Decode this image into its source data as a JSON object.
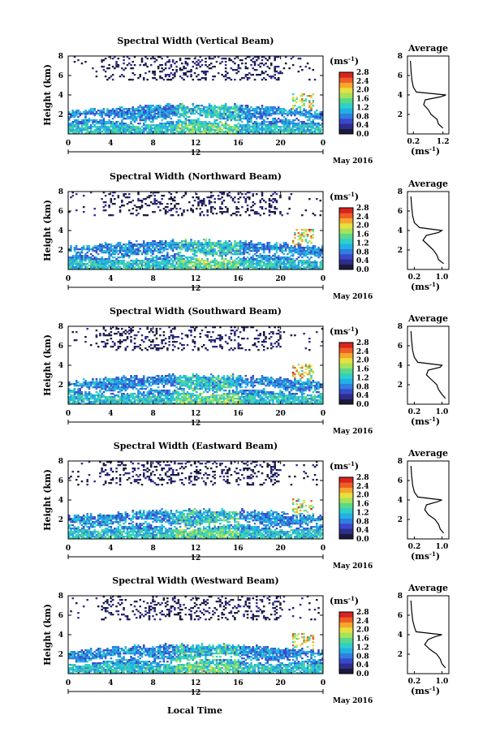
{
  "figure": {
    "xlabel": "Local Time",
    "colorbar_unit": "(ms",
    "colorbar_unit_exp": "-1",
    "colorbar_unit_close": ")",
    "date_label": "May 2016",
    "avg_title": "Average",
    "avg_xlabel_prefix": "(ms",
    "avg_xlabel_exp": "-1",
    "avg_xlabel_suffix": ")",
    "ylabel": "Height (km)",
    "day_marker": "12"
  },
  "palette": [
    "#1a1a3c",
    "#2d2d8c",
    "#3a49c9",
    "#2f7fe0",
    "#22b0e6",
    "#2fd0c8",
    "#5ad88a",
    "#a4e35a",
    "#e8e040",
    "#f6a62c",
    "#ef5c26",
    "#d8231f"
  ],
  "chart_data": [
    {
      "type": "heatmap",
      "title": "Spectral Width (Vertical Beam)",
      "xlabel": "Local Time",
      "ylabel": "Height (km)",
      "xlim": [
        0,
        24
      ],
      "ylim": [
        0,
        8
      ],
      "x_ticks": [
        "0",
        "4",
        "8",
        "12",
        "16",
        "20",
        "0"
      ],
      "y_ticks": [
        "2",
        "4",
        "6",
        "8"
      ],
      "colorbar": {
        "ticks": [
          "0.0",
          "0.4",
          "0.8",
          "1.2",
          "1.6",
          "2.0",
          "2.4",
          "2.8"
        ],
        "range": [
          0,
          2.8
        ]
      },
      "average_profile": {
        "x_ticks": [
          "0.2",
          "1.2"
        ],
        "xlim": [
          0,
          1.4
        ],
        "y_ticks": [
          "2",
          "4",
          "6",
          "8"
        ],
        "height_km": [
          0.6,
          1.0,
          1.5,
          2.0,
          2.5,
          3.0,
          3.5,
          3.8,
          4.0,
          4.3,
          4.8,
          5.5,
          6.5,
          7.5
        ],
        "width_ms": [
          1.2,
          1.05,
          1.0,
          0.8,
          0.7,
          0.55,
          0.6,
          1.1,
          1.3,
          0.3,
          0.2,
          0.15,
          0.12,
          0.1
        ]
      }
    },
    {
      "type": "heatmap",
      "title": "Spectral Width (Northward Beam)",
      "xlabel": "Local Time",
      "ylabel": "Height (km)",
      "xlim": [
        0,
        24
      ],
      "ylim": [
        0,
        8
      ],
      "x_ticks": [
        "0",
        "4",
        "8",
        "12",
        "16",
        "20",
        "0"
      ],
      "y_ticks": [
        "2",
        "4",
        "6",
        "8"
      ],
      "colorbar": {
        "ticks": [
          "0.0",
          "0.4",
          "0.8",
          "1.2",
          "1.6",
          "2.0",
          "2.4",
          "2.8"
        ],
        "range": [
          0,
          2.8
        ]
      },
      "average_profile": {
        "x_ticks": [
          "0.2",
          "1.0"
        ],
        "xlim": [
          0,
          1.2
        ],
        "y_ticks": [
          "2",
          "4",
          "6",
          "8"
        ],
        "height_km": [
          0.6,
          1.0,
          1.5,
          2.0,
          2.5,
          3.0,
          3.5,
          3.8,
          4.0,
          4.3,
          4.8,
          5.5,
          6.5,
          7.5
        ],
        "width_ms": [
          1.05,
          0.9,
          0.85,
          0.75,
          0.6,
          0.45,
          0.55,
          0.9,
          1.0,
          0.35,
          0.2,
          0.15,
          0.12,
          0.1
        ]
      }
    },
    {
      "type": "heatmap",
      "title": "Spectral Width (Southward Beam)",
      "xlabel": "Local Time",
      "ylabel": "Height (km)",
      "xlim": [
        0,
        24
      ],
      "ylim": [
        0,
        8
      ],
      "x_ticks": [
        "0",
        "4",
        "8",
        "12",
        "16",
        "20",
        "0"
      ],
      "y_ticks": [
        "2",
        "4",
        "6",
        "8"
      ],
      "colorbar": {
        "ticks": [
          "0.0",
          "0.4",
          "0.8",
          "1.2",
          "1.6",
          "2.0",
          "2.4",
          "2.8"
        ],
        "range": [
          0,
          2.8
        ]
      },
      "average_profile": {
        "x_ticks": [
          "0.2",
          "1.0"
        ],
        "xlim": [
          0,
          1.2
        ],
        "y_ticks": [
          "2",
          "4",
          "6",
          "8"
        ],
        "height_km": [
          0.6,
          1.0,
          1.5,
          2.0,
          2.5,
          3.0,
          3.5,
          3.8,
          4.0,
          4.3,
          4.8,
          5.5,
          6.5,
          7.5
        ],
        "width_ms": [
          1.1,
          1.0,
          0.9,
          0.85,
          0.7,
          0.55,
          0.6,
          0.95,
          1.0,
          0.3,
          0.2,
          0.15,
          0.12,
          0.1
        ]
      }
    },
    {
      "type": "heatmap",
      "title": "Spectral Width (Eastward Beam)",
      "xlabel": "Local Time",
      "ylabel": "Height (km)",
      "xlim": [
        0,
        24
      ],
      "ylim": [
        0,
        8
      ],
      "x_ticks": [
        "0",
        "4",
        "8",
        "12",
        "16",
        "20",
        "0"
      ],
      "y_ticks": [
        "2",
        "4",
        "6",
        "8"
      ],
      "colorbar": {
        "ticks": [
          "0.0",
          "0.4",
          "0.8",
          "1.2",
          "1.6",
          "2.0",
          "2.4",
          "2.8"
        ],
        "range": [
          0,
          2.8
        ]
      },
      "average_profile": {
        "x_ticks": [
          "0.2",
          "1.0"
        ],
        "xlim": [
          0,
          1.2
        ],
        "y_ticks": [
          "2",
          "4",
          "6",
          "8"
        ],
        "height_km": [
          0.6,
          1.0,
          1.5,
          2.0,
          2.5,
          3.0,
          3.5,
          3.8,
          4.0,
          4.3,
          4.8,
          5.5,
          6.5,
          7.5
        ],
        "width_ms": [
          1.05,
          0.95,
          0.9,
          0.8,
          0.6,
          0.5,
          0.55,
          0.85,
          1.0,
          0.3,
          0.2,
          0.15,
          0.12,
          0.1
        ]
      }
    },
    {
      "type": "heatmap",
      "title": "Spectral Width (Westward Beam)",
      "xlabel": "Local Time",
      "ylabel": "Height (km)",
      "xlim": [
        0,
        24
      ],
      "ylim": [
        0,
        8
      ],
      "x_ticks": [
        "0",
        "4",
        "8",
        "12",
        "16",
        "20",
        "0"
      ],
      "y_ticks": [
        "2",
        "4",
        "6",
        "8"
      ],
      "colorbar": {
        "ticks": [
          "0.0",
          "0.4",
          "0.8",
          "1.2",
          "1.6",
          "2.0",
          "2.4",
          "2.8"
        ],
        "range": [
          0,
          2.8
        ]
      },
      "average_profile": {
        "x_ticks": [
          "0.2",
          "1.0"
        ],
        "xlim": [
          0,
          1.2
        ],
        "y_ticks": [
          "2",
          "4",
          "6",
          "8"
        ],
        "height_km": [
          0.6,
          1.0,
          1.5,
          2.0,
          2.5,
          3.0,
          3.5,
          3.8,
          4.0,
          4.3,
          4.8,
          5.5,
          6.5,
          7.5
        ],
        "width_ms": [
          1.1,
          1.0,
          0.95,
          0.85,
          0.65,
          0.5,
          0.6,
          0.8,
          1.0,
          0.25,
          0.2,
          0.15,
          0.12,
          0.1
        ]
      }
    }
  ]
}
